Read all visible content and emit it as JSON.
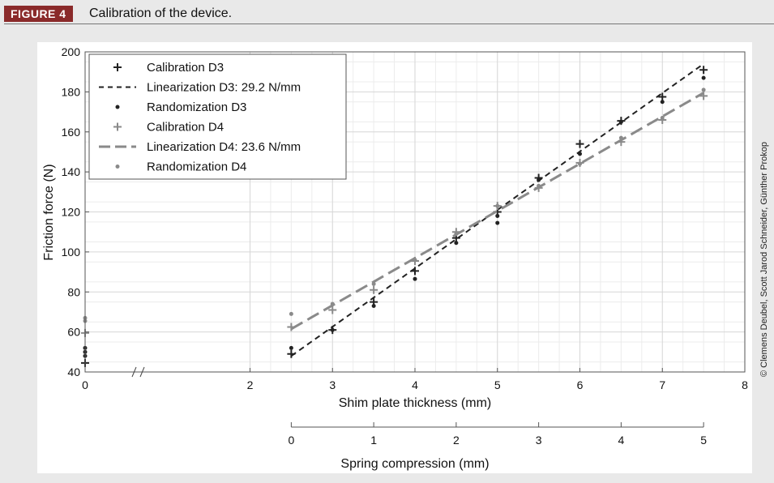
{
  "header": {
    "badge": "FIGURE 4",
    "caption": "Calibration of the device.",
    "badge_color": "#8a2a2a"
  },
  "credit": "© Clemens Deubel, Scott Jarod Schneider, Günther Prokop",
  "chart_data": {
    "type": "scatter",
    "title": "",
    "xlabel": "Shim plate thickness (mm)",
    "ylabel": "Friction force (N)",
    "xlim": [
      0,
      8
    ],
    "ylim": [
      40,
      200
    ],
    "x_axis_break": [
      0,
      2
    ],
    "xticks": [
      "0",
      "2",
      "3",
      "4",
      "5",
      "6",
      "7",
      "8"
    ],
    "xtick_values": [
      0,
      2,
      3,
      4,
      5,
      6,
      7,
      8
    ],
    "yticks": [
      "40",
      "60",
      "80",
      "100",
      "120",
      "140",
      "160",
      "180",
      "200"
    ],
    "ytick_values": [
      40,
      60,
      80,
      100,
      120,
      140,
      160,
      180,
      200
    ],
    "grid": true,
    "legend_position": "top-left",
    "secondary_x_axis": {
      "label": "Spring compression (mm)",
      "ticks": [
        "0",
        "1",
        "2",
        "3",
        "4",
        "5"
      ],
      "tick_values": [
        0,
        1,
        2,
        3,
        4,
        5
      ],
      "shim_offset_mm": 2.5
    },
    "series": [
      {
        "name": "Calibration D3",
        "kind": "plus",
        "color": "#222222",
        "points": [
          [
            0,
            44.5
          ],
          [
            2.5,
            49
          ],
          [
            3,
            61
          ],
          [
            3.5,
            75
          ],
          [
            4,
            90.5
          ],
          [
            4.5,
            107
          ],
          [
            5,
            120
          ],
          [
            5.5,
            137
          ],
          [
            6,
            154
          ],
          [
            6.5,
            165.5
          ],
          [
            7,
            177.5
          ],
          [
            7.5,
            191
          ]
        ]
      },
      {
        "name": "Linearization D3: 29.2 N/mm",
        "kind": "line",
        "dash": "short",
        "color": "#222222",
        "points": [
          [
            2.5,
            48
          ],
          [
            7.5,
            194
          ]
        ]
      },
      {
        "name": "Randomization D3",
        "kind": "dot",
        "color": "#222222",
        "points": [
          [
            0,
            48
          ],
          [
            0,
            50
          ],
          [
            0,
            52
          ],
          [
            2.5,
            52
          ],
          [
            3,
            61
          ],
          [
            3.5,
            73
          ],
          [
            4,
            86.5
          ],
          [
            4.5,
            104.5
          ],
          [
            5,
            114.5
          ],
          [
            5,
            118
          ],
          [
            5.5,
            136
          ],
          [
            6,
            149
          ],
          [
            6.5,
            165
          ],
          [
            7,
            175
          ],
          [
            7.5,
            187
          ]
        ]
      },
      {
        "name": "Calibration D4",
        "kind": "plus",
        "color": "#8a8a8a",
        "points": [
          [
            0,
            59.5
          ],
          [
            2.5,
            62.5
          ],
          [
            3,
            71
          ],
          [
            3.5,
            81
          ],
          [
            4,
            95.5
          ],
          [
            4.5,
            110
          ],
          [
            5,
            123
          ],
          [
            5.5,
            132
          ],
          [
            6,
            144.5
          ],
          [
            6.5,
            155
          ],
          [
            7,
            166
          ],
          [
            7.5,
            178
          ]
        ]
      },
      {
        "name": "Linearization D4: 23.6 N/mm",
        "kind": "line",
        "dash": "long",
        "color": "#8a8a8a",
        "points": [
          [
            2.5,
            61.5
          ],
          [
            7.5,
            179.5
          ]
        ]
      },
      {
        "name": "Randomization D4",
        "kind": "dot",
        "color": "#8a8a8a",
        "points": [
          [
            0,
            65.5
          ],
          [
            0,
            67
          ],
          [
            2.5,
            69
          ],
          [
            3,
            74
          ],
          [
            3.5,
            84
          ],
          [
            4,
            96
          ],
          [
            4.5,
            109
          ],
          [
            5,
            123
          ],
          [
            5.5,
            133
          ],
          [
            6,
            144
          ],
          [
            6.5,
            157
          ],
          [
            7,
            167
          ],
          [
            7.5,
            181
          ]
        ]
      }
    ]
  }
}
